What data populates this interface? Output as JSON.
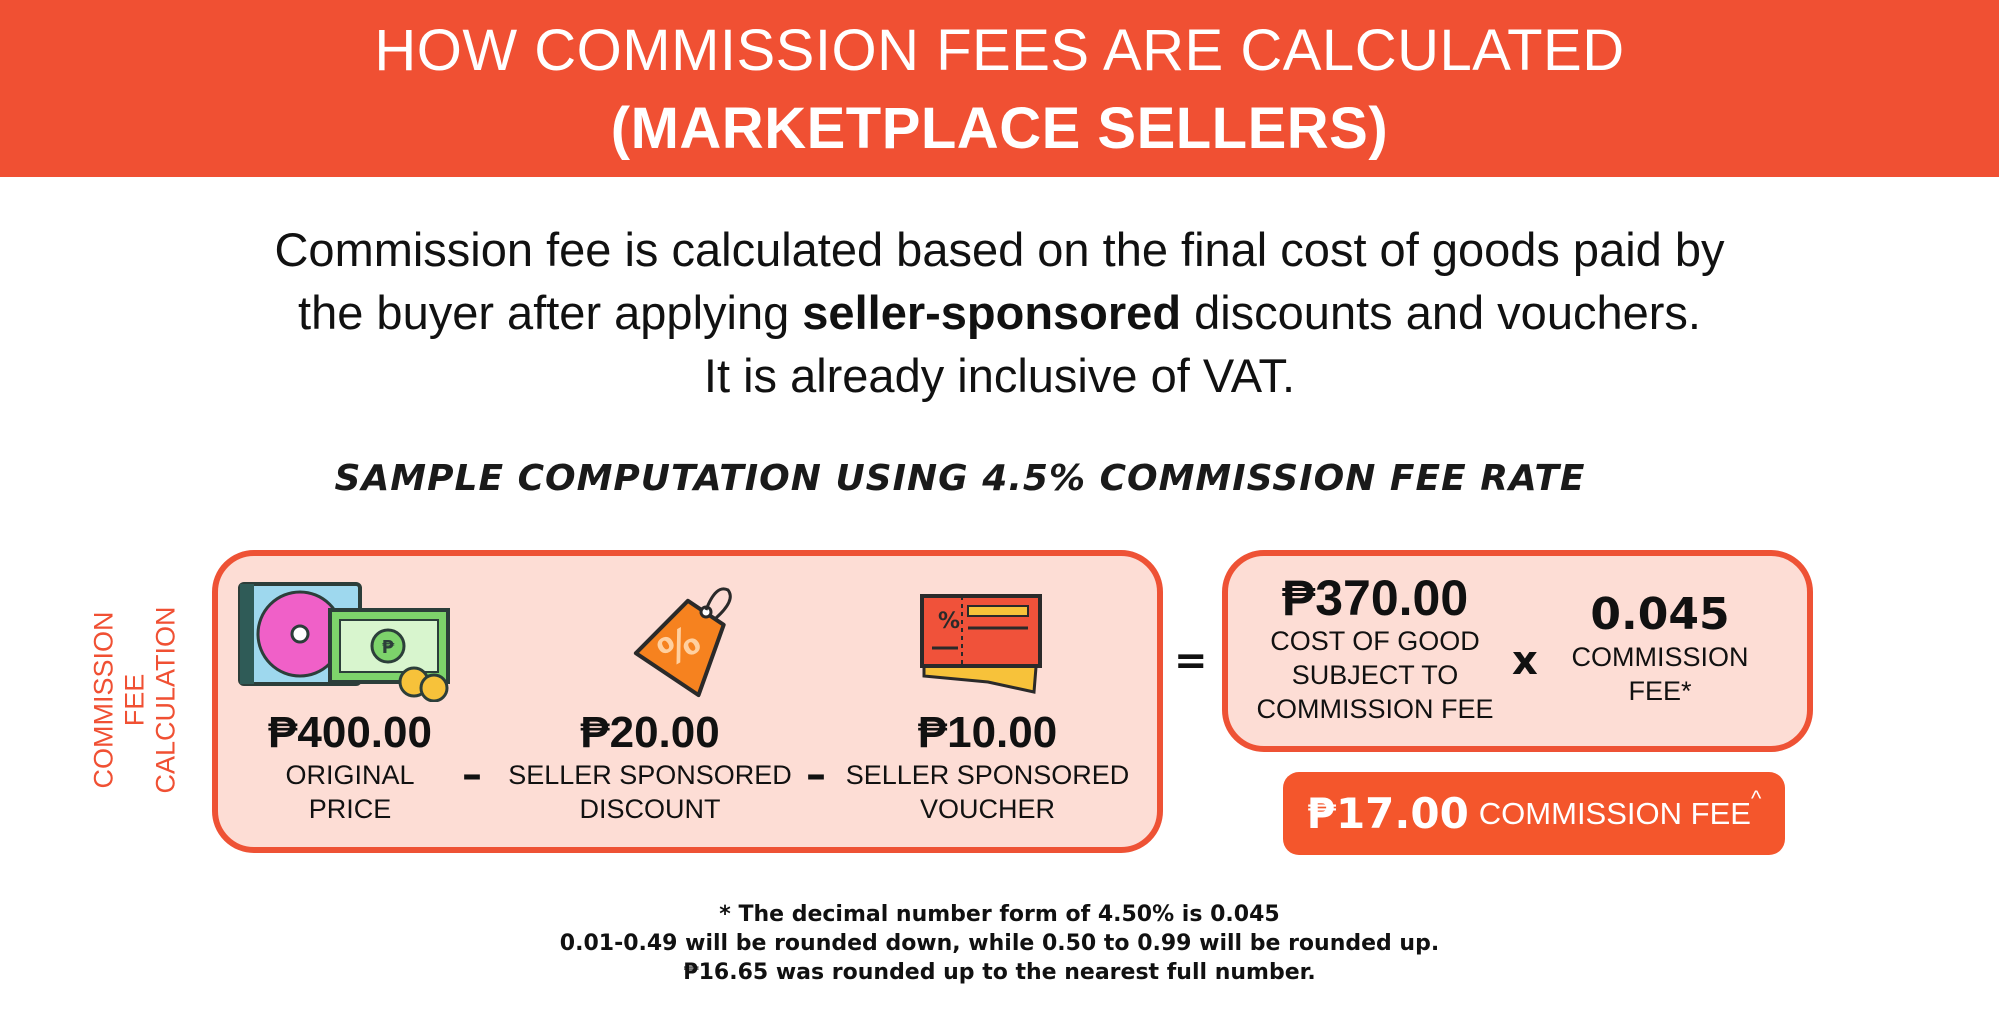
{
  "header": {
    "line1": "HOW COMMISSION FEES ARE CALCULATED",
    "line2": "(MARKETPLACE SELLERS)"
  },
  "intro": {
    "line1": "Commission fee is calculated based on the final cost of goods paid by",
    "line2_pre": "the buyer after applying ",
    "line2_bold": "seller-sponsored",
    "line2_post": " discounts and vouchers.",
    "line3": "It is already inclusive of VAT."
  },
  "sample_heading": "SAMPLE COMPUTATION USING 4.5% COMMISSION FEE RATE",
  "side_label": {
    "line1": "COMMISSION FEE",
    "line2": "CALCULATION"
  },
  "items": [
    {
      "amount": "₱400.00",
      "label1": "ORIGINAL",
      "label2": "PRICE",
      "icon": "cash-and-disc-icon"
    },
    {
      "amount": "₱20.00",
      "label1": "SELLER SPONSORED",
      "label2": "DISCOUNT",
      "icon": "discount-tag-icon"
    },
    {
      "amount": "₱10.00",
      "label1": "SELLER SPONSORED",
      "label2": "VOUCHER",
      "icon": "voucher-ticket-icon"
    }
  ],
  "operators": {
    "minus": "–",
    "equals": "=",
    "times": "x"
  },
  "cost": {
    "amount": "₱370.00",
    "label1": "COST OF GOOD",
    "label2": "SUBJECT TO",
    "label3": "COMMISSION FEE"
  },
  "rate": {
    "value": "0.045",
    "label1": "COMMISSION",
    "label2": "FEE*"
  },
  "result": {
    "amount": "₱17.00",
    "label": "COMMISSION FEE",
    "caret": "^"
  },
  "footnotes": [
    "* The decimal number form of 4.50% is 0.045",
    "0.01-0.49 will be rounded down, while 0.50 to 0.99 will be rounded up.",
    "₱16.65 was rounded up to the nearest full number."
  ],
  "colors": {
    "brand": "#F05033",
    "box_fill": "#FDDDD5",
    "result_fill": "#F4562C"
  }
}
